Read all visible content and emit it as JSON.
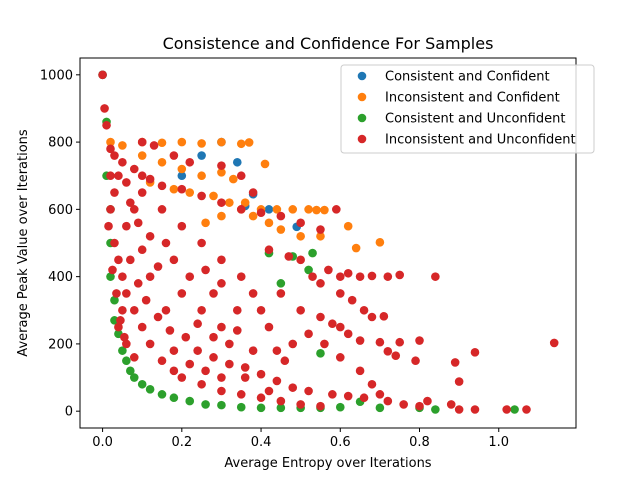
{
  "chart_data": {
    "type": "scatter",
    "title": "Consistence and Confidence For Samples",
    "xlabel": "Average Entropy over Iterations",
    "ylabel": "Average Peak Value over Iterations",
    "xlim": [
      -0.057,
      1.195
    ],
    "ylim": [
      -50,
      1050
    ],
    "xticks": [
      0.0,
      0.2,
      0.4,
      0.6,
      0.8,
      1.0
    ],
    "xtick_labels": [
      "0.0",
      "0.2",
      "0.4",
      "0.6",
      "0.8",
      "1.0"
    ],
    "yticks": [
      0,
      200,
      400,
      600,
      800,
      1000
    ],
    "ytick_labels": [
      "0",
      "200",
      "400",
      "600",
      "800",
      "1000"
    ],
    "grid": false,
    "legend_position": "top-right",
    "series": [
      {
        "name": "Consistent and Confident",
        "color": "#1f77b4",
        "points": [
          [
            0.0,
            1000
          ],
          [
            0.38,
            645
          ],
          [
            0.49,
            548
          ],
          [
            0.3,
            800
          ],
          [
            0.25,
            760
          ],
          [
            0.2,
            700
          ],
          [
            0.42,
            600
          ],
          [
            0.34,
            740
          ],
          [
            0.36,
            610
          ]
        ]
      },
      {
        "name": "Inconsistent and Confident",
        "color": "#ff7f0e",
        "points": [
          [
            0.02,
            800
          ],
          [
            0.05,
            790
          ],
          [
            0.1,
            800
          ],
          [
            0.15,
            798
          ],
          [
            0.2,
            800
          ],
          [
            0.25,
            796
          ],
          [
            0.3,
            800
          ],
          [
            0.35,
            795
          ],
          [
            0.37,
            799
          ],
          [
            0.1,
            760
          ],
          [
            0.15,
            740
          ],
          [
            0.2,
            720
          ],
          [
            0.25,
            700
          ],
          [
            0.3,
            710
          ],
          [
            0.33,
            690
          ],
          [
            0.12,
            680
          ],
          [
            0.18,
            660
          ],
          [
            0.22,
            650
          ],
          [
            0.28,
            640
          ],
          [
            0.32,
            620
          ],
          [
            0.35,
            600
          ],
          [
            0.4,
            600
          ],
          [
            0.44,
            600
          ],
          [
            0.48,
            600
          ],
          [
            0.52,
            600
          ],
          [
            0.54,
            598
          ],
          [
            0.56,
            598
          ],
          [
            0.42,
            560
          ],
          [
            0.45,
            540
          ],
          [
            0.5,
            520
          ],
          [
            0.55,
            520
          ],
          [
            0.62,
            550
          ],
          [
            0.64,
            485
          ],
          [
            0.7,
            502
          ],
          [
            0.41,
            735
          ],
          [
            0.3,
            580
          ],
          [
            0.26,
            560
          ],
          [
            0.36,
            620
          ],
          [
            0.38,
            580
          ]
        ]
      },
      {
        "name": "Consistent and Unconfident",
        "color": "#2ca02c",
        "points": [
          [
            0.0,
            1000
          ],
          [
            0.01,
            860
          ],
          [
            0.01,
            700
          ],
          [
            0.02,
            600
          ],
          [
            0.02,
            500
          ],
          [
            0.02,
            400
          ],
          [
            0.03,
            330
          ],
          [
            0.03,
            270
          ],
          [
            0.04,
            230
          ],
          [
            0.05,
            180
          ],
          [
            0.06,
            150
          ],
          [
            0.07,
            120
          ],
          [
            0.08,
            100
          ],
          [
            0.1,
            80
          ],
          [
            0.12,
            65
          ],
          [
            0.15,
            50
          ],
          [
            0.18,
            40
          ],
          [
            0.22,
            30
          ],
          [
            0.26,
            20
          ],
          [
            0.3,
            18
          ],
          [
            0.35,
            12
          ],
          [
            0.4,
            10
          ],
          [
            0.45,
            10
          ],
          [
            0.5,
            10
          ],
          [
            0.55,
            10
          ],
          [
            0.6,
            12
          ],
          [
            0.65,
            28
          ],
          [
            0.55,
            172
          ],
          [
            0.53,
            470
          ],
          [
            0.48,
            460
          ],
          [
            0.42,
            470
          ],
          [
            0.7,
            10
          ],
          [
            0.8,
            10
          ],
          [
            0.84,
            5
          ],
          [
            1.04,
            5
          ],
          [
            0.45,
            380
          ],
          [
            0.52,
            420
          ]
        ]
      },
      {
        "name": "Inconsistent and Unconfident",
        "color": "#d62728",
        "points": [
          [
            0.0,
            1000
          ],
          [
            0.005,
            900
          ],
          [
            0.01,
            850
          ],
          [
            0.02,
            780
          ],
          [
            0.03,
            760
          ],
          [
            0.05,
            740
          ],
          [
            0.08,
            720
          ],
          [
            0.1,
            700
          ],
          [
            0.12,
            690
          ],
          [
            0.15,
            670
          ],
          [
            0.2,
            660
          ],
          [
            0.25,
            640
          ],
          [
            0.3,
            620
          ],
          [
            0.35,
            600
          ],
          [
            0.4,
            590
          ],
          [
            0.45,
            580
          ],
          [
            0.5,
            560
          ],
          [
            0.55,
            540
          ],
          [
            0.59,
            600
          ],
          [
            0.02,
            600
          ],
          [
            0.03,
            500
          ],
          [
            0.04,
            450
          ],
          [
            0.05,
            400
          ],
          [
            0.06,
            350
          ],
          [
            0.08,
            300
          ],
          [
            0.1,
            250
          ],
          [
            0.12,
            200
          ],
          [
            0.15,
            150
          ],
          [
            0.18,
            120
          ],
          [
            0.2,
            100
          ],
          [
            0.25,
            80
          ],
          [
            0.3,
            60
          ],
          [
            0.35,
            50
          ],
          [
            0.4,
            40
          ],
          [
            0.45,
            30
          ],
          [
            0.5,
            20
          ],
          [
            0.55,
            15
          ],
          [
            0.6,
            400
          ],
          [
            0.62,
            410
          ],
          [
            0.65,
            400
          ],
          [
            0.68,
            402
          ],
          [
            0.72,
            400
          ],
          [
            0.75,
            405
          ],
          [
            0.84,
            400
          ],
          [
            0.6,
            350
          ],
          [
            0.63,
            330
          ],
          [
            0.66,
            300
          ],
          [
            0.68,
            280
          ],
          [
            0.71,
            282
          ],
          [
            0.6,
            250
          ],
          [
            0.62,
            230
          ],
          [
            0.65,
            210
          ],
          [
            0.7,
            205
          ],
          [
            0.75,
            205
          ],
          [
            0.79,
            150
          ],
          [
            0.8,
            210
          ],
          [
            0.72,
            178
          ],
          [
            0.74,
            165
          ],
          [
            0.89,
            145
          ],
          [
            0.94,
            175
          ],
          [
            0.9,
            88
          ],
          [
            1.14,
            203
          ],
          [
            0.65,
            120
          ],
          [
            0.68,
            80
          ],
          [
            0.7,
            50
          ],
          [
            0.72,
            30
          ],
          [
            0.76,
            20
          ],
          [
            0.8,
            15
          ],
          [
            0.82,
            30
          ],
          [
            0.88,
            20
          ],
          [
            0.9,
            5
          ],
          [
            0.94,
            5
          ],
          [
            1.02,
            5
          ],
          [
            1.07,
            5
          ],
          [
            0.1,
            800
          ],
          [
            0.13,
            790
          ],
          [
            0.18,
            760
          ],
          [
            0.22,
            740
          ],
          [
            0.3,
            730
          ],
          [
            0.35,
            700
          ],
          [
            0.38,
            650
          ],
          [
            0.42,
            480
          ],
          [
            0.47,
            460
          ],
          [
            0.5,
            450
          ],
          [
            0.53,
            400
          ],
          [
            0.55,
            380
          ],
          [
            0.57,
            420
          ],
          [
            0.45,
            350
          ],
          [
            0.5,
            300
          ],
          [
            0.55,
            280
          ],
          [
            0.58,
            260
          ],
          [
            0.4,
            300
          ],
          [
            0.42,
            250
          ],
          [
            0.48,
            200
          ],
          [
            0.52,
            230
          ],
          [
            0.56,
            200
          ],
          [
            0.6,
            160
          ],
          [
            0.35,
            400
          ],
          [
            0.3,
            450
          ],
          [
            0.25,
            500
          ],
          [
            0.2,
            550
          ],
          [
            0.15,
            600
          ],
          [
            0.1,
            650
          ],
          [
            0.08,
            600
          ],
          [
            0.06,
            550
          ],
          [
            0.07,
            450
          ],
          [
            0.09,
            380
          ],
          [
            0.11,
            330
          ],
          [
            0.14,
            280
          ],
          [
            0.17,
            240
          ],
          [
            0.21,
            220
          ],
          [
            0.24,
            180
          ],
          [
            0.28,
            160
          ],
          [
            0.32,
            140
          ],
          [
            0.36,
            130
          ],
          [
            0.4,
            110
          ],
          [
            0.44,
            90
          ],
          [
            0.48,
            70
          ],
          [
            0.52,
            60
          ],
          [
            0.58,
            50
          ],
          [
            0.62,
            45
          ],
          [
            0.66,
            40
          ],
          [
            0.05,
            300
          ],
          [
            0.04,
            250
          ],
          [
            0.06,
            200
          ],
          [
            0.08,
            160
          ],
          [
            0.25,
            300
          ],
          [
            0.28,
            350
          ],
          [
            0.3,
            250
          ],
          [
            0.32,
            200
          ],
          [
            0.34,
            300
          ],
          [
            0.38,
            350
          ],
          [
            0.22,
            400
          ],
          [
            0.18,
            450
          ],
          [
            0.16,
            500
          ],
          [
            0.12,
            520
          ],
          [
            0.14,
            430
          ],
          [
            0.26,
            420
          ],
          [
            0.3,
            380
          ],
          [
            0.2,
            350
          ],
          [
            0.24,
            260
          ],
          [
            0.28,
            220
          ],
          [
            0.44,
            180
          ],
          [
            0.46,
            150
          ],
          [
            0.38,
            180
          ],
          [
            0.34,
            240
          ],
          [
            0.36,
            100
          ],
          [
            0.42,
            60
          ],
          [
            0.3,
            100
          ],
          [
            0.26,
            120
          ],
          [
            0.22,
            140
          ],
          [
            0.18,
            180
          ],
          [
            0.16,
            300
          ],
          [
            0.12,
            400
          ],
          [
            0.1,
            480
          ],
          [
            0.09,
            560
          ],
          [
            0.07,
            620
          ],
          [
            0.06,
            680
          ],
          [
            0.04,
            700
          ],
          [
            0.03,
            650
          ],
          [
            0.02,
            700
          ],
          [
            0.015,
            550
          ],
          [
            0.025,
            420
          ],
          [
            0.035,
            350
          ],
          [
            0.045,
            270
          ],
          [
            0.055,
            220
          ]
        ]
      }
    ]
  }
}
